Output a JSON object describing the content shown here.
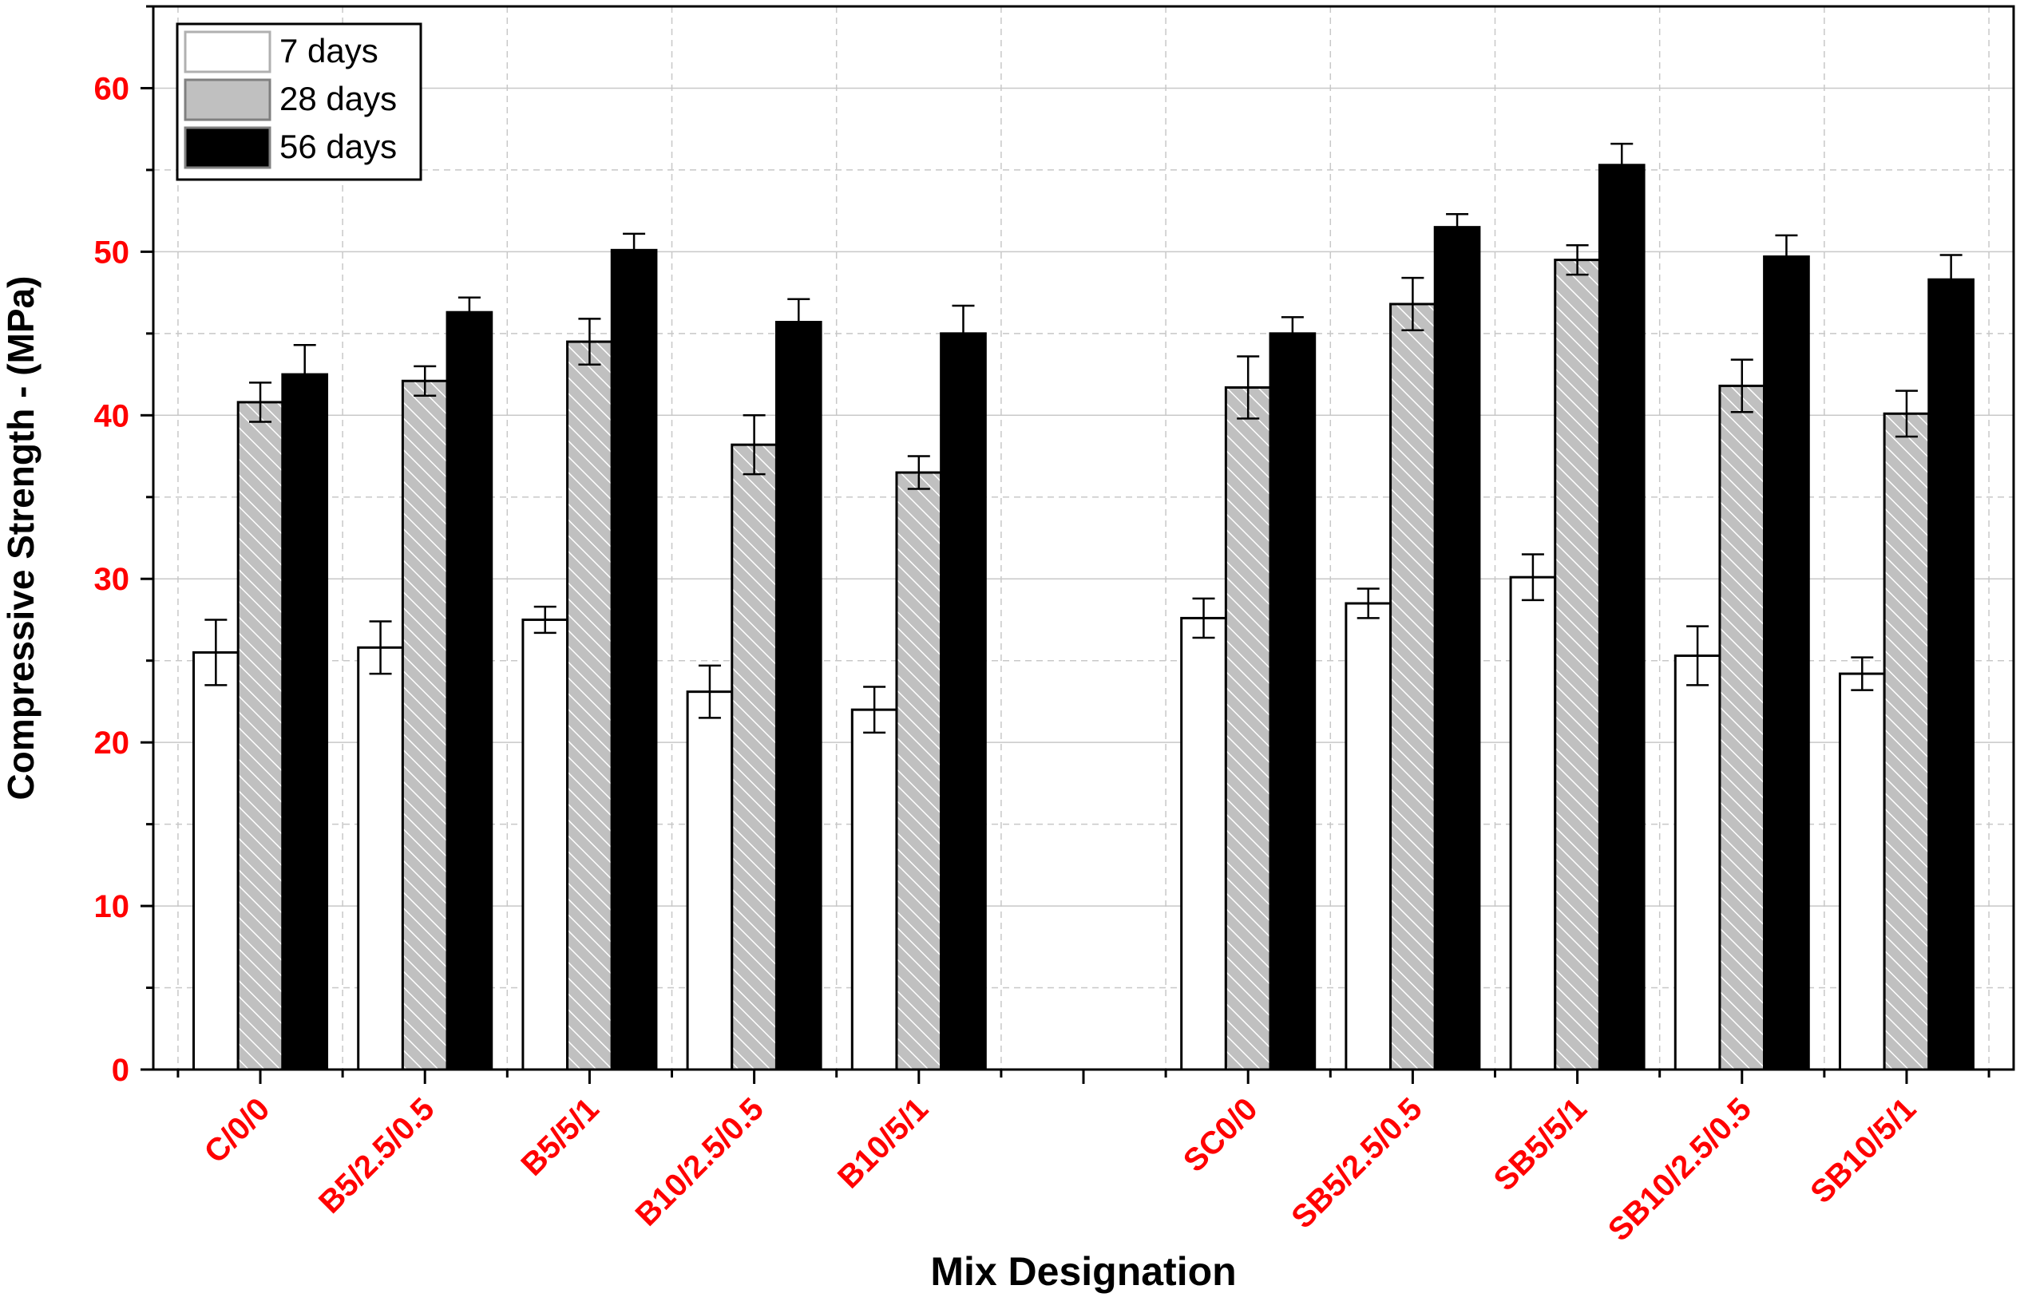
{
  "chart_data": {
    "type": "bar",
    "title": "",
    "xlabel": "Mix Designation",
    "ylabel": "Compressive Strength - (MPa)",
    "ylim": [
      0,
      65
    ],
    "yticks": [
      0,
      10,
      20,
      30,
      40,
      50,
      60
    ],
    "grid": true,
    "legend_position": "top-left",
    "categories": [
      "C/0/0",
      "B5/2.5/0.5",
      "B5/5/1",
      "B10/2.5/0.5",
      "B10/5/1",
      "",
      "SC0/0",
      "SB5/2.5/0.5",
      "SB5/5/1",
      "SB10/2.5/0.5",
      "SB10/5/1"
    ],
    "series": [
      {
        "name": "7 days",
        "values": [
          25.5,
          25.8,
          27.5,
          23.1,
          22.0,
          null,
          27.6,
          28.5,
          30.1,
          25.3,
          24.2
        ],
        "errors": [
          2.0,
          1.6,
          0.8,
          1.6,
          1.4,
          null,
          1.2,
          0.9,
          1.4,
          1.8,
          1.0
        ]
      },
      {
        "name": "28 days",
        "values": [
          40.8,
          42.1,
          44.5,
          38.2,
          36.5,
          null,
          41.7,
          46.8,
          49.5,
          41.8,
          40.1
        ],
        "errors": [
          1.2,
          0.9,
          1.4,
          1.8,
          1.0,
          null,
          1.9,
          1.6,
          0.9,
          1.6,
          1.4
        ]
      },
      {
        "name": "56 days",
        "values": [
          42.5,
          46.3,
          50.1,
          45.7,
          45.0,
          null,
          45.0,
          51.5,
          55.3,
          49.7,
          48.3
        ],
        "errors": [
          1.8,
          0.9,
          1.0,
          1.4,
          1.7,
          null,
          1.0,
          0.8,
          1.3,
          1.3,
          1.5
        ]
      }
    ],
    "colors": {
      "tick_label": "#ff0000",
      "axis_title": "#000000",
      "grid": "#c8c8c8",
      "series_fill": [
        "#ffffff",
        "#c0c0c0",
        "#000000"
      ],
      "hatch_line": "#ffffff"
    }
  }
}
